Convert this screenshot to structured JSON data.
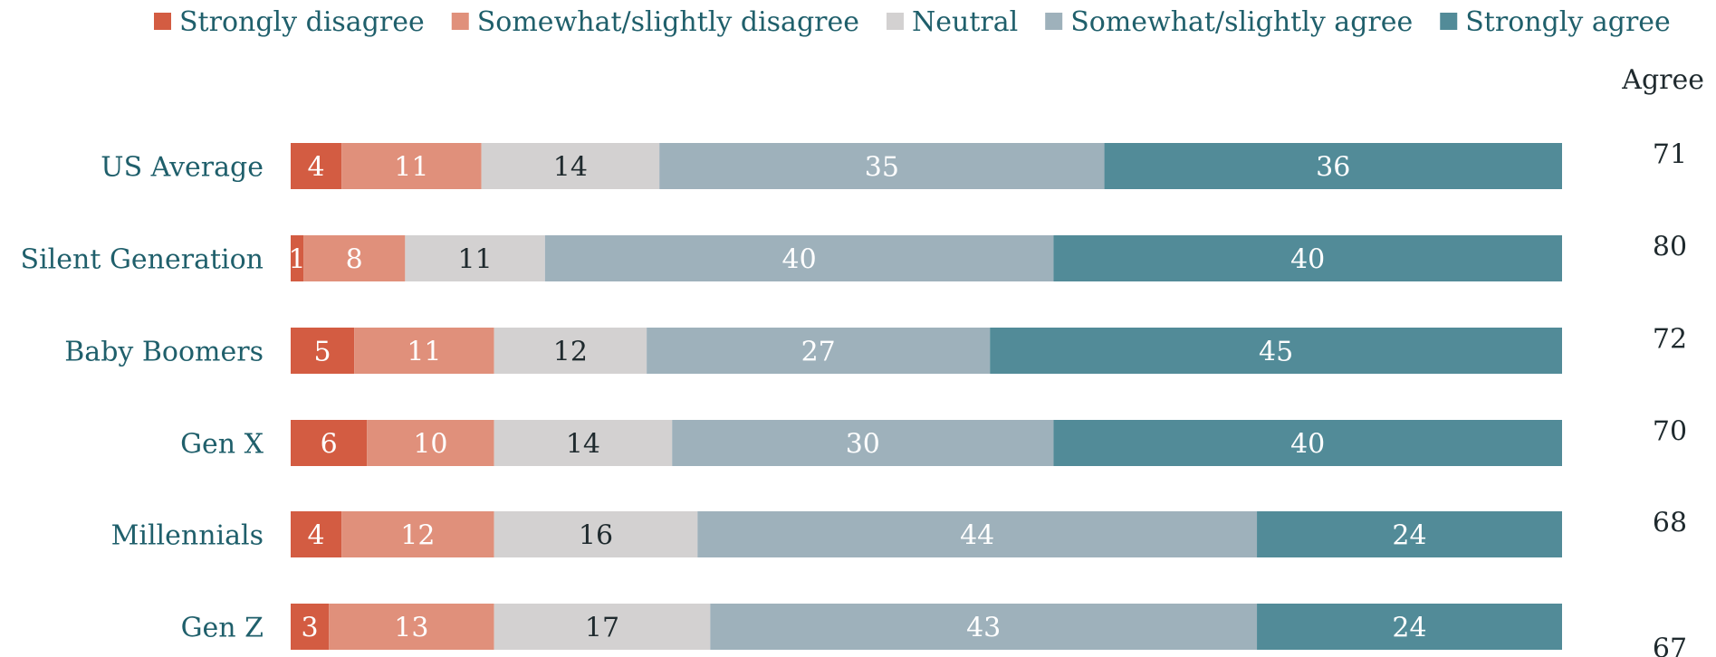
{
  "chart_data": {
    "type": "bar",
    "orientation": "horizontal",
    "stacked": true,
    "categories": [
      "US Average",
      "Silent Generation",
      "Baby Boomers",
      "Gen X",
      "Millennials",
      "Gen Z"
    ],
    "series": [
      {
        "name": "Strongly disagree",
        "color": "#d35c42",
        "label_color": "#ffffff",
        "values": [
          4,
          1,
          5,
          6,
          4,
          3
        ]
      },
      {
        "name": "Somewhat/slightly disagree",
        "color": "#e0907b",
        "label_color": "#ffffff",
        "values": [
          11,
          8,
          11,
          10,
          12,
          13
        ]
      },
      {
        "name": "Neutral",
        "color": "#d3d1d1",
        "label_color": "#1f2a2e",
        "values": [
          14,
          11,
          12,
          14,
          16,
          17
        ]
      },
      {
        "name": "Somewhat/slightly agree",
        "color": "#9eb1bb",
        "label_color": "#ffffff",
        "values": [
          35,
          40,
          27,
          30,
          44,
          43
        ]
      },
      {
        "name": "Strongly agree",
        "color": "#528b98",
        "label_color": "#ffffff",
        "values": [
          36,
          40,
          45,
          40,
          24,
          24
        ]
      }
    ],
    "agree_header": "Agree",
    "agree_totals": [
      71,
      80,
      72,
      70,
      68,
      67
    ],
    "legend_position": "top",
    "grid": false
  }
}
